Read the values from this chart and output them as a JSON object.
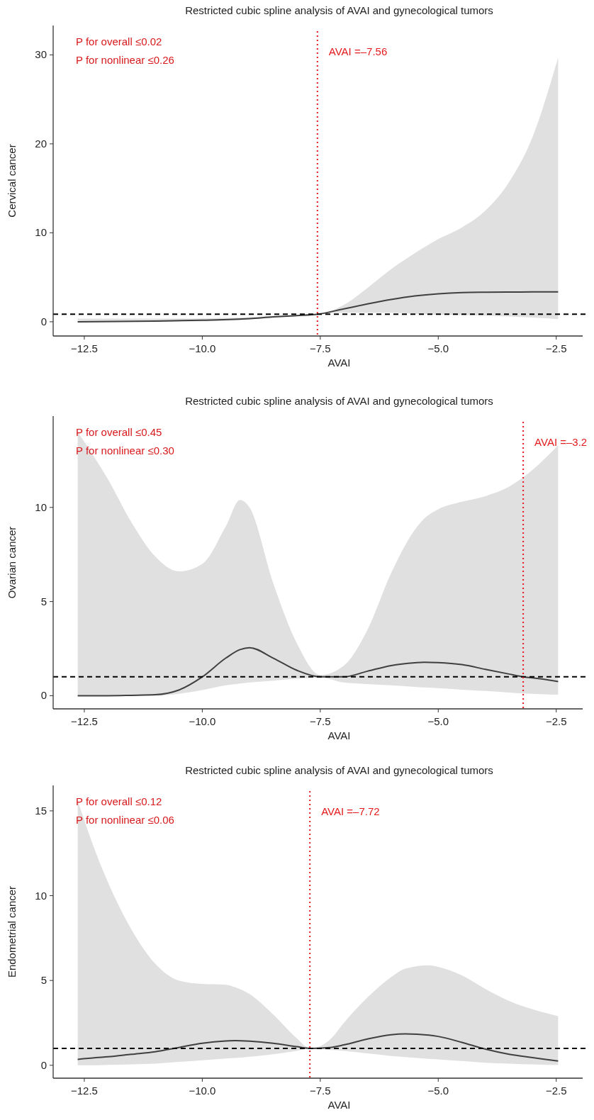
{
  "chart_data": [
    {
      "type": "line",
      "title": "Restricted cubic spline analysis of AVAI and gynecological tumors",
      "xlabel": "AVAI",
      "ylabel": "Cervical cancer",
      "xlim": [
        -13.16,
        -1.94
      ],
      "xticks": [
        {
          "value": -12.5,
          "label": "−12.5"
        },
        {
          "value": -10,
          "label": "−10.0"
        },
        {
          "value": -7.5,
          "label": "−7.5"
        },
        {
          "value": -5,
          "label": "−5.0"
        },
        {
          "value": -2.5,
          "label": "−2.5"
        }
      ],
      "ylim": [
        -1.6,
        33.3
      ],
      "yticks": [
        0,
        10,
        20,
        30
      ],
      "x": [
        -12.64,
        -11,
        -10,
        -9,
        -8.5,
        -8,
        -7.56,
        -7,
        -6.5,
        -6,
        -5.5,
        -5,
        -4.5,
        -4,
        -3.5,
        -3,
        -2.46
      ],
      "series": [
        {
          "color": "#404040",
          "line_style": "solid",
          "values": [
            0,
            0.08,
            0.17,
            0.35,
            0.55,
            0.7,
            0.85,
            1.45,
            2.0,
            2.5,
            2.9,
            3.15,
            3.28,
            3.32,
            3.34,
            3.36,
            3.37
          ],
          "lower": [
            -0.05,
            0,
            0.05,
            0.25,
            0.45,
            0.62,
            0.85,
            1.0,
            1.0,
            1.0,
            0.9,
            0.8,
            0.75,
            0.7,
            0.6,
            0.47,
            0.3
          ],
          "upper": [
            0.35,
            0.35,
            0.4,
            0.5,
            0.65,
            0.78,
            0.85,
            1.9,
            3.8,
            5.9,
            7.7,
            9.3,
            10.6,
            12.5,
            15.7,
            20.8,
            29.7
          ]
        }
      ],
      "ref_lines": [
        {
          "axis": "y",
          "value": 0.85,
          "color": "#000000",
          "line_style": "dashed"
        },
        {
          "axis": "x",
          "value": -7.56,
          "label": "AVAI =–7.56",
          "color": "#e41a1c",
          "line_style": "dotted"
        }
      ],
      "annotations": [
        "P for overall ≤0.02",
        "P for nonlinear ≤0.26"
      ]
    },
    {
      "type": "line",
      "title": "Restricted cubic spline analysis of AVAI and gynecological tumors",
      "xlabel": "AVAI",
      "ylabel": "Ovarian cancer",
      "xlim": [
        -13.16,
        -1.94
      ],
      "xticks": [
        {
          "value": -12.5,
          "label": "−12.5"
        },
        {
          "value": -10,
          "label": "−10.0"
        },
        {
          "value": -7.5,
          "label": "−7.5"
        },
        {
          "value": -5,
          "label": "−5.0"
        },
        {
          "value": -2.5,
          "label": "−2.5"
        }
      ],
      "ylim": [
        -0.7,
        14.85
      ],
      "yticks": [
        0,
        5,
        10
      ],
      "x": [
        -12.64,
        -12,
        -11.5,
        -11,
        -10.5,
        -10,
        -9.5,
        -9.2,
        -9,
        -8.5,
        -8,
        -7.5,
        -7,
        -6.5,
        -6,
        -5.5,
        -5.3,
        -5,
        -4.5,
        -4,
        -3.5,
        -3.2,
        -3,
        -2.46
      ],
      "series": [
        {
          "color": "#404040",
          "line_style": "solid",
          "values": [
            0,
            0,
            0.02,
            0.05,
            0.3,
            1.0,
            2.0,
            2.45,
            2.55,
            2.0,
            1.35,
            1.0,
            1.0,
            1.3,
            1.6,
            1.75,
            1.78,
            1.76,
            1.65,
            1.4,
            1.15,
            1.0,
            0.95,
            0.75
          ],
          "lower": [
            0,
            0,
            0,
            0,
            0.1,
            0.3,
            0.55,
            0.65,
            0.7,
            0.8,
            0.9,
            0.97,
            0.7,
            0.62,
            0.55,
            0.47,
            0.44,
            0.4,
            0.32,
            0.25,
            0.17,
            0.12,
            0.1,
            0.05
          ],
          "upper": [
            14.0,
            11.5,
            9.2,
            7.4,
            6.6,
            7.0,
            9.0,
            10.4,
            10.0,
            6.0,
            2.8,
            1.1,
            1.6,
            3.5,
            6.5,
            8.8,
            9.4,
            9.9,
            10.3,
            10.6,
            11.1,
            11.6,
            12.0,
            13.3
          ]
        }
      ],
      "ref_lines": [
        {
          "axis": "y",
          "value": 1,
          "color": "#000000",
          "line_style": "dashed"
        },
        {
          "axis": "x",
          "value": -3.2,
          "label": "AVAI =–3.2",
          "color": "#e41a1c",
          "line_style": "dotted"
        }
      ],
      "annotations": [
        "P for overall ≤0.45",
        "P for nonlinear ≤0.30"
      ]
    },
    {
      "type": "line",
      "title": "Restricted cubic spline analysis of AVAI and gynecological tumors",
      "xlabel": "AVAI",
      "ylabel": "Endometrial cancer",
      "xlim": [
        -13.16,
        -1.94
      ],
      "xticks": [
        {
          "value": -12.5,
          "label": "−12.5"
        },
        {
          "value": -10,
          "label": "−10.0"
        },
        {
          "value": -7.5,
          "label": "−7.5"
        },
        {
          "value": -5,
          "label": "−5.0"
        },
        {
          "value": -2.5,
          "label": "−2.5"
        }
      ],
      "ylim": [
        -0.76,
        16.5
      ],
      "yticks": [
        0,
        5,
        10,
        15
      ],
      "x": [
        -12.64,
        -12.25,
        -12,
        -11.5,
        -11,
        -10.5,
        -10,
        -9.5,
        -9.3,
        -9,
        -8.5,
        -8,
        -7.72,
        -7.3,
        -7,
        -6.5,
        -6,
        -5.7,
        -5.2,
        -5,
        -4.5,
        -4,
        -3.5,
        -3,
        -2.46
      ],
      "series": [
        {
          "color": "#404040",
          "line_style": "solid",
          "values": [
            0.35,
            0.45,
            0.5,
            0.65,
            0.8,
            1.05,
            1.3,
            1.43,
            1.45,
            1.42,
            1.3,
            1.1,
            1.0,
            1.05,
            1.2,
            1.55,
            1.8,
            1.85,
            1.78,
            1.7,
            1.35,
            0.95,
            0.65,
            0.45,
            0.25
          ],
          "lower": [
            0,
            0,
            0.02,
            0.06,
            0.1,
            0.2,
            0.3,
            0.4,
            0.43,
            0.5,
            0.65,
            0.85,
            0.98,
            0.9,
            0.85,
            0.7,
            0.55,
            0.48,
            0.38,
            0.35,
            0.25,
            0.15,
            0.1,
            0.05,
            0.02
          ],
          "upper": [
            15.6,
            12.5,
            10.8,
            8.0,
            6.0,
            5.0,
            4.8,
            4.75,
            4.6,
            4.2,
            3.0,
            1.6,
            1.0,
            1.5,
            2.5,
            4.0,
            5.2,
            5.7,
            5.9,
            5.8,
            5.3,
            4.5,
            3.8,
            3.3,
            2.9
          ]
        }
      ],
      "ref_lines": [
        {
          "axis": "y",
          "value": 1,
          "color": "#000000",
          "line_style": "dashed"
        },
        {
          "axis": "x",
          "value": -7.72,
          "label": "AVAI =–7.72",
          "color": "#e41a1c",
          "line_style": "dotted"
        }
      ],
      "annotations": [
        "P for overall ≤0.12",
        "P for nonlinear ≤0.06"
      ]
    }
  ]
}
